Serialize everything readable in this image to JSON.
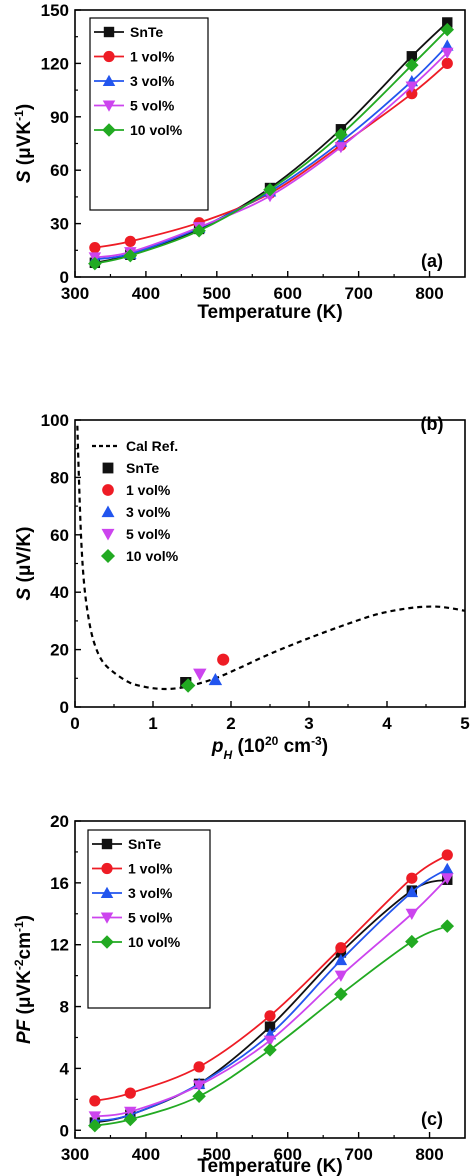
{
  "colors": {
    "SnTe": "#111111",
    "1 vol%": "#ee1c25",
    "3 vol%": "#2255ee",
    "5 vol%": "#cc44ee",
    "10 vol%": "#22aa22",
    "Cal Ref.": "#000000"
  },
  "chart_data": [
    {
      "type": "line",
      "panel_label": "(a)",
      "xlabel": "Temperature (K)",
      "ylabel": {
        "main": "S",
        "unit_pre": " (μVK",
        "sup": "-1",
        "unit_post": ")"
      },
      "xlim": [
        300,
        850
      ],
      "ylim": [
        0,
        150
      ],
      "xticks": [
        300,
        400,
        500,
        600,
        700,
        800
      ],
      "yticks": [
        0,
        30,
        60,
        90,
        120,
        150
      ],
      "legend": "top-left",
      "x": [
        328,
        378,
        475,
        575,
        675,
        775,
        825
      ],
      "series": [
        {
          "name": "SnTe",
          "marker": "square",
          "values": [
            8,
            12.5,
            27,
            50,
            83,
            124,
            143
          ]
        },
        {
          "name": "1 vol%",
          "marker": "circle",
          "values": [
            16.5,
            20,
            30.5,
            47,
            74,
            103,
            120
          ]
        },
        {
          "name": "3 vol%",
          "marker": "triangle-up",
          "values": [
            10,
            13,
            27.5,
            48,
            76,
            110,
            130
          ]
        },
        {
          "name": "5 vol%",
          "marker": "triangle-down",
          "values": [
            11,
            14,
            28,
            45.5,
            73,
            107,
            126
          ]
        },
        {
          "name": "10 vol%",
          "marker": "diamond",
          "values": [
            7.5,
            12,
            26,
            49,
            80,
            119,
            139
          ]
        }
      ]
    },
    {
      "type": "scatter",
      "panel_label": "(b)",
      "xlabel": {
        "main": "p",
        "sub": "H",
        "unit_pre": " (10",
        "sup1": "20",
        "unit_mid": " cm",
        "sup2": "-3",
        "unit_post": ")"
      },
      "ylabel": {
        "main": "S",
        "unit": " (μV/K)"
      },
      "xlim": [
        0,
        5
      ],
      "ylim": [
        0,
        100
      ],
      "xticks": [
        0,
        1,
        2,
        3,
        4,
        5
      ],
      "yticks": [
        0,
        20,
        40,
        60,
        80,
        100
      ],
      "legend": "top-left",
      "reference_curve": {
        "name": "Cal Ref.",
        "style": "dashed",
        "x": [
          0.03,
          0.05,
          0.08,
          0.12,
          0.18,
          0.25,
          0.35,
          0.5,
          0.7,
          0.9,
          1.1,
          1.3,
          1.5,
          1.8,
          2.1,
          2.5,
          3.0,
          3.5,
          3.9,
          4.3,
          4.6,
          4.8,
          5.0
        ],
        "y": [
          98,
          80,
          58,
          42,
          30,
          22,
          16,
          12,
          8.5,
          7,
          6.3,
          6.5,
          7.5,
          10,
          13.5,
          18.5,
          24,
          29,
          32.5,
          34.5,
          35,
          34.5,
          33.5
        ]
      },
      "series": [
        {
          "name": "SnTe",
          "marker": "square",
          "x": [
            1.42
          ],
          "y": [
            8.5
          ]
        },
        {
          "name": "1 vol%",
          "marker": "circle",
          "x": [
            1.9
          ],
          "y": [
            16.5
          ]
        },
        {
          "name": "3 vol%",
          "marker": "triangle-up",
          "x": [
            1.8
          ],
          "y": [
            9.5
          ]
        },
        {
          "name": "5 vol%",
          "marker": "triangle-down",
          "x": [
            1.6
          ],
          "y": [
            11.5
          ]
        },
        {
          "name": "10 vol%",
          "marker": "diamond",
          "x": [
            1.45
          ],
          "y": [
            7.5
          ]
        }
      ]
    },
    {
      "type": "line",
      "panel_label": "(c)",
      "xlabel": "Temperature (K)",
      "ylabel": {
        "main": "PF",
        "unit_pre": " (μVK",
        "sup1": "-2",
        "unit_mid": "cm",
        "sup2": "-1",
        "unit_post": ")"
      },
      "xlim": [
        300,
        850
      ],
      "ylim": [
        -0.5,
        20
      ],
      "xticks": [
        300,
        400,
        500,
        600,
        700,
        800
      ],
      "yticks": [
        0,
        4,
        8,
        12,
        16,
        20
      ],
      "legend": "top-left",
      "x": [
        328,
        378,
        475,
        575,
        675,
        775,
        825
      ],
      "series": [
        {
          "name": "SnTe",
          "marker": "square",
          "values": [
            0.5,
            1.0,
            3.0,
            6.7,
            11.5,
            15.5,
            16.2
          ]
        },
        {
          "name": "1 vol%",
          "marker": "circle",
          "values": [
            1.9,
            2.4,
            4.1,
            7.4,
            11.8,
            16.3,
            17.8
          ]
        },
        {
          "name": "3 vol%",
          "marker": "triangle-up",
          "values": [
            0.6,
            1.0,
            3.0,
            6.2,
            11.0,
            15.4,
            16.9
          ]
        },
        {
          "name": "5 vol%",
          "marker": "triangle-down",
          "values": [
            0.9,
            1.2,
            2.9,
            5.8,
            10.0,
            14.0,
            16.3
          ]
        },
        {
          "name": "10 vol%",
          "marker": "diamond",
          "values": [
            0.3,
            0.7,
            2.2,
            5.2,
            8.8,
            12.2,
            13.2
          ]
        }
      ]
    }
  ]
}
